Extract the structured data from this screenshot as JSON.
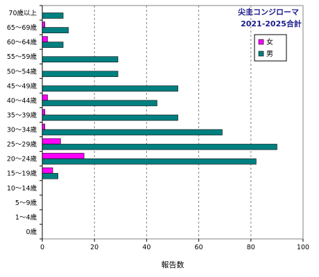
{
  "chart_data": {
    "type": "bar",
    "orientation": "horizontal",
    "title": "尖圭コンジローマ",
    "subtitle": "2021-2025合計",
    "xlabel": "報告数",
    "ylabel": "",
    "xlim": [
      0,
      100
    ],
    "x_ticks": [
      0,
      20,
      40,
      60,
      80,
      100
    ],
    "grid": "vertical dashed",
    "legend_position": "top-right",
    "categories": [
      "70歳以上",
      "65～69歳",
      "60～64歳",
      "55～59歳",
      "50～54歳",
      "45～49歳",
      "40～44歳",
      "35～39歳",
      "30～34歳",
      "25～29歳",
      "20～24歳",
      "15～19歳",
      "10～14歳",
      "5～9歳",
      "1～4歳",
      "0歳"
    ],
    "series": [
      {
        "name": "女",
        "color": "#ff00ff",
        "values": [
          0,
          1,
          2,
          0,
          0,
          0,
          2,
          1,
          1,
          7,
          16,
          4,
          0,
          0,
          0,
          0
        ]
      },
      {
        "name": "男",
        "color": "#008080",
        "values": [
          8,
          10,
          8,
          29,
          29,
          52,
          44,
          52,
          69,
          90,
          82,
          6,
          0,
          0,
          0,
          0
        ]
      }
    ]
  }
}
